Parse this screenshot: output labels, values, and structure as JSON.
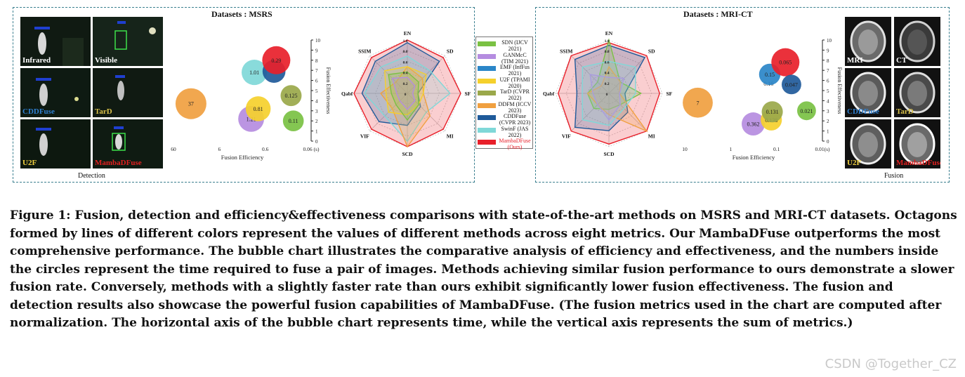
{
  "figure": {
    "left_title": "Datasets : MSRS",
    "right_title": "Datasets : MRI-CT",
    "left_tiles": [
      "Infrared",
      "Visible",
      "CDDFuse",
      "TarD",
      "U2F",
      "MambaDFuse"
    ],
    "right_tiles": [
      "MRI",
      "CT",
      "CDDFuse",
      "TarD",
      "U2F",
      "MambaDFuse"
    ],
    "left_caption": "Detection",
    "right_caption": "Fusion",
    "tile_label_colors": [
      "#ffffff",
      "#ffffff",
      "#2f7fd0",
      "#d9c14a",
      "#f0d040",
      "#e02020"
    ]
  },
  "legend": [
    {
      "text": "SDN (IJCV 2021)",
      "color": "#7ac143"
    },
    {
      "text": "GANMcC (TIM 2021)",
      "color": "#b58ce0"
    },
    {
      "text": "EMF (InfFus 2021)",
      "color": "#2a86c8"
    },
    {
      "text": "U2F (TPAMI 2020)",
      "color": "#f5d02c"
    },
    {
      "text": "TarD (CVPR 2022)",
      "color": "#9aa84a"
    },
    {
      "text": "DDFM (ICCV 2023)",
      "color": "#f0a040"
    },
    {
      "text": "CDDFuse (CVPR 2023)",
      "color": "#1f5a9a"
    },
    {
      "text": "SwinF (JAS 2022)",
      "color": "#7fd8d8"
    },
    {
      "text": "MambaDFuse (Ours)",
      "color": "#e8202a",
      "highlight": true
    }
  ],
  "chart_data": [
    {
      "type": "scatter",
      "subtype": "bubble",
      "dataset": "MSRS",
      "xlabel": "Fusion Efficiency",
      "ylabel": "Fusion Effectiveness",
      "x_ticks": [
        "60",
        "6",
        "0.6",
        "0.06 (s)"
      ],
      "x_scale": "log-reversed",
      "ylim": [
        0,
        10
      ],
      "y_ticks": [
        "0",
        "1",
        "2",
        "3",
        "4",
        "5",
        "6",
        "7",
        "8",
        "9",
        "10"
      ],
      "points": [
        {
          "label": "37",
          "time": 37,
          "y": 3.7,
          "color": "#f0a040"
        },
        {
          "label": "1.01",
          "time": 1.01,
          "y": 6.8,
          "color": "#7fd8d8"
        },
        {
          "label": "0.81",
          "time": 0.81,
          "y": 3.2,
          "color": "#f5d02c"
        },
        {
          "label": "1.21",
          "time": 1.21,
          "y": 2.2,
          "color": "#b58ce0"
        },
        {
          "label": "0.29",
          "time": 0.29,
          "y": 8.0,
          "color": "#e8202a"
        },
        {
          "label": "",
          "time": 0.33,
          "y": 6.9,
          "color": "#1f5a9a"
        },
        {
          "label": "0.125",
          "time": 0.125,
          "y": 4.5,
          "color": "#9aa84a"
        },
        {
          "label": "0.11",
          "time": 0.11,
          "y": 2.0,
          "color": "#7ac143"
        }
      ]
    },
    {
      "type": "radar",
      "dataset": "MSRS",
      "axes": [
        "EN",
        "SD",
        "SF",
        "MI",
        "SCD",
        "VIF",
        "Qabf",
        "SSIM"
      ],
      "rings": [
        "0",
        "0.2",
        "0.4",
        "0.6",
        "0.8",
        "1.0"
      ],
      "series": [
        {
          "color": "#e8202a",
          "values": [
            1.0,
            0.95,
            1.0,
            0.95,
            1.0,
            0.95,
            1.0,
            0.95
          ]
        },
        {
          "color": "#1f5a9a",
          "values": [
            0.95,
            0.85,
            0.2,
            0.35,
            0.6,
            0.75,
            0.85,
            0.85
          ]
        },
        {
          "color": "#7fd8d8",
          "values": [
            0.7,
            0.6,
            0.8,
            0.5,
            0.9,
            0.6,
            0.8,
            0.7
          ]
        },
        {
          "color": "#f0a040",
          "values": [
            0.5,
            0.4,
            0.3,
            0.6,
            1.0,
            0.4,
            0.5,
            0.3
          ]
        },
        {
          "color": "#f5d02c",
          "values": [
            0.5,
            0.5,
            0.3,
            0.3,
            0.4,
            0.5,
            0.4,
            0.6
          ]
        },
        {
          "color": "#7ac143",
          "values": [
            0.4,
            0.3,
            0.2,
            0.3,
            0.5,
            0.3,
            0.3,
            0.5
          ]
        },
        {
          "color": "#b58ce0",
          "values": [
            0.3,
            0.2,
            0.1,
            0.2,
            0.3,
            0.2,
            0.2,
            0.4
          ]
        }
      ]
    },
    {
      "type": "radar",
      "dataset": "MRI-CT",
      "axes": [
        "EN",
        "SD",
        "SF",
        "MI",
        "SCD",
        "VIF",
        "Qabf",
        "SSIM"
      ],
      "rings": [
        "0",
        "0.2",
        "0.4",
        "0.6",
        "0.8",
        "1.0"
      ],
      "series": [
        {
          "color": "#e8202a",
          "values": [
            0.95,
            1.0,
            0.95,
            1.0,
            0.95,
            1.0,
            0.95,
            1.0
          ]
        },
        {
          "color": "#1f5a9a",
          "values": [
            0.9,
            0.95,
            0.3,
            0.5,
            0.7,
            0.9,
            0.6,
            0.9
          ]
        },
        {
          "color": "#7ac143",
          "values": [
            1.0,
            0.3,
            0.6,
            0.3,
            0.3,
            0.4,
            0.4,
            0.3
          ]
        },
        {
          "color": "#f0a040",
          "values": [
            0.5,
            0.3,
            0.2,
            1.0,
            0.4,
            0.3,
            0.4,
            0.2
          ]
        },
        {
          "color": "#b58ce0",
          "values": [
            0.3,
            0.4,
            0.2,
            0.3,
            0.5,
            0.3,
            0.3,
            0.5
          ]
        },
        {
          "color": "#7fd8d8",
          "values": [
            0.6,
            0.7,
            0.5,
            0.4,
            0.6,
            0.7,
            0.5,
            0.7
          ]
        }
      ]
    },
    {
      "type": "scatter",
      "subtype": "bubble",
      "dataset": "MRI-CT",
      "xlabel": "Fusion Efficiency",
      "ylabel": "Fusion Effectiveness",
      "x_ticks": [
        "10",
        "1",
        "0.1",
        "0.01(s)"
      ],
      "x_scale": "log-reversed",
      "ylim": [
        0,
        10
      ],
      "y_ticks": [
        "0",
        "1",
        "2",
        "3",
        "4",
        "5",
        "6",
        "7",
        "8",
        "9",
        "10"
      ],
      "points": [
        {
          "label": "7",
          "time": 7,
          "y": 3.8,
          "color": "#f0a040"
        },
        {
          "label": "0.16",
          "time": 0.16,
          "y": 5.7,
          "color": "#9a9a9a",
          "plain": true
        },
        {
          "label": "0.15",
          "time": 0.15,
          "y": 6.6,
          "color": "#2a86c8"
        },
        {
          "label": "0.065",
          "time": 0.065,
          "y": 7.8,
          "color": "#e8202a"
        },
        {
          "label": "0.047",
          "time": 0.047,
          "y": 5.6,
          "color": "#1f5a9a"
        },
        {
          "label": "0.021",
          "time": 0.021,
          "y": 3.0,
          "color": "#7ac143"
        },
        {
          "label": "0.131",
          "time": 0.131,
          "y": 2.9,
          "color": "#9aa84a"
        },
        {
          "label": "0.138",
          "time": 0.138,
          "y": 2.1,
          "color": "#f5d02c"
        },
        {
          "label": "0.362",
          "time": 0.362,
          "y": 1.7,
          "color": "#b58ce0"
        }
      ]
    }
  ],
  "caption": "Figure 1: Fusion, detection and efficiency&effectiveness comparisons with state-of-the-art methods on MSRS and MRI-CT datasets. Octagons formed by lines of different colors represent the values of different methods across eight metrics. Our MambaDFuse outperforms the most comprehensive performance. The bubble chart illustrates the comparative analysis of efficiency and effectiveness, and the numbers inside the circles represent the time required to fuse a pair of images. Methods achieving similar fusion performance to ours demonstrate a slower fusion rate. Conversely, methods with a slightly faster rate than ours exhibit significantly lower fusion effectiveness. The fusion and detection results also showcase the powerful fusion capabilities of MambaDFuse. (The fusion metrics used in the chart are computed after normalization. The horizontal axis of the bubble chart represents time, while the vertical axis represents the sum of metrics.)",
  "watermark": "CSDN @Together_CZ"
}
